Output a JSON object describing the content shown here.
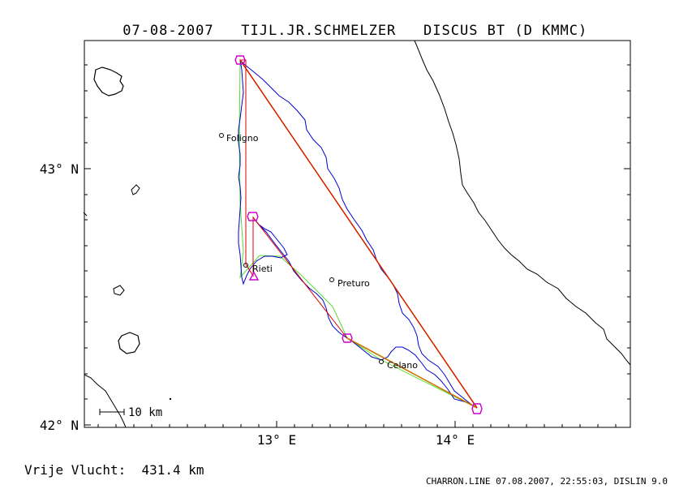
{
  "header": {
    "date": "07-08-2007",
    "pilot": "TIJL.JR.SCHMELZER",
    "glider": "DISCUS BT (D KMMC)"
  },
  "map": {
    "lat_labels": [
      "43° N",
      "42° N"
    ],
    "lon_labels": [
      "13° E",
      "14° E"
    ],
    "scale_bar_label": "10 km",
    "towns": [
      {
        "name": "Foligno"
      },
      {
        "name": "Rieti"
      },
      {
        "name": "Preturo"
      },
      {
        "name": "Celano"
      }
    ],
    "colors": {
      "track": "#0000cc",
      "task_line": "#cc7700",
      "optimized_line": "#dd0000",
      "alt_line": "#55dd33",
      "turnpoints": "#cc00cc"
    }
  },
  "footer": {
    "distance": "Vrije Vlucht:  431.4 km",
    "credit": "CHARRON.LINE 07.08.2007, 22:55:03, DISLIN 9.0"
  }
}
